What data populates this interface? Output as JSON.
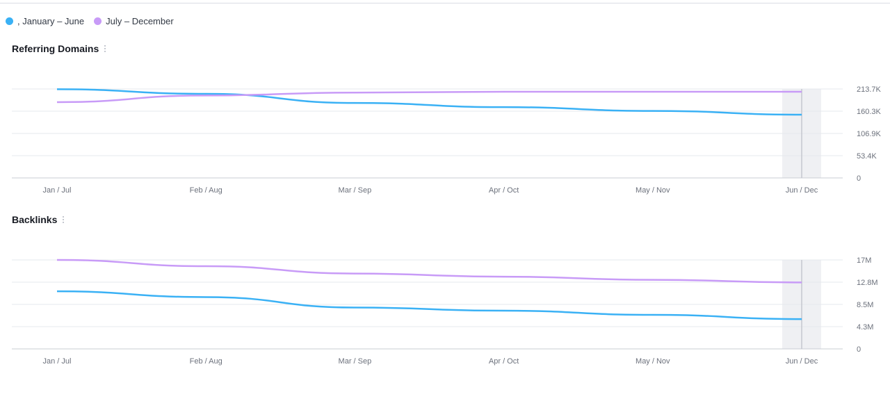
{
  "legend": [
    {
      "label": ", January – June",
      "color": "#3ab1f5"
    },
    {
      "label": "July – December",
      "color": "#c89bf7"
    }
  ],
  "chart_data": [
    {
      "type": "line",
      "title": "Referring Domains",
      "categories": [
        "Jan / Jul",
        "Feb / Aug",
        "Mar / Sep",
        "Apr / Oct",
        "May / Nov",
        "Jun / Dec"
      ],
      "yticks": [
        "0",
        "53.4K",
        "106.9K",
        "160.3K",
        "213.7K"
      ],
      "ylim": [
        0,
        213700
      ],
      "series": [
        {
          "name": ", January – June",
          "color": "#3ab1f5",
          "values": [
            213000,
            202000,
            180000,
            170000,
            161000,
            152000
          ]
        },
        {
          "name": "July – December",
          "color": "#c89bf7",
          "values": [
            182000,
            198000,
            205000,
            207000,
            207000,
            207000
          ]
        }
      ],
      "highlight_category": "Jun / Dec"
    },
    {
      "type": "line",
      "title": "Backlinks",
      "categories": [
        "Jan / Jul",
        "Feb / Aug",
        "Mar / Sep",
        "Apr / Oct",
        "May / Nov",
        "Jun / Dec"
      ],
      "yticks": [
        "0",
        "4.3M",
        "8.5M",
        "12.8M",
        "17M"
      ],
      "ylim": [
        0,
        17000000
      ],
      "series": [
        {
          "name": ", January – June",
          "color": "#3ab1f5",
          "values": [
            11000000,
            9900000,
            7900000,
            7300000,
            6500000,
            5700000
          ]
        },
        {
          "name": "July – December",
          "color": "#c89bf7",
          "values": [
            17000000,
            15800000,
            14400000,
            13800000,
            13200000,
            12700000
          ]
        }
      ],
      "highlight_category": "Jun / Dec"
    }
  ]
}
